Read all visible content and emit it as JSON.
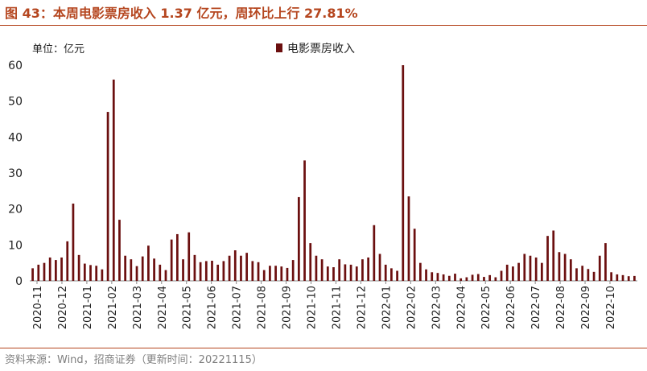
{
  "title": "图 43：本周电影票房收入 1.37 亿元，周环比上行 27.81%",
  "source": "资料来源：Wind，招商证券（更新时间：20221115）",
  "colors": {
    "accent": "#b5461f",
    "bar": "#6b0f0f"
  },
  "chart_data": {
    "type": "bar",
    "unit_label": "单位：亿元",
    "legend": "电影票房收入",
    "legend_position": "top-center",
    "grid": false,
    "ylim": [
      0,
      60
    ],
    "yticks": [
      0,
      10,
      20,
      30,
      40,
      50,
      60
    ],
    "xtick_labels": [
      "2020-11",
      "2020-12",
      "2021-01",
      "2021-02",
      "2021-03",
      "2021-04",
      "2021-05",
      "2021-06",
      "2021-07",
      "2021-08",
      "2021-09",
      "2021-10",
      "2021-11",
      "2021-12",
      "2022-01",
      "2022-02",
      "2022-03",
      "2022-04",
      "2022-05",
      "2022-06",
      "2022-07",
      "2022-08",
      "2022-09",
      "2022-10"
    ],
    "series": [
      {
        "name": "电影票房收入",
        "values": [
          3.5,
          4.5,
          5,
          6.5,
          5.8,
          6.5,
          11,
          21.5,
          7.2,
          4.8,
          4.4,
          4.2,
          3.2,
          47,
          56,
          17,
          7,
          6,
          4.1,
          6.8,
          9.8,
          6.2,
          4.5,
          3,
          11.5,
          13,
          6,
          13.5,
          7.2,
          5.2,
          5.5,
          5.6,
          4.5,
          5.5,
          7,
          8.5,
          7,
          7.8,
          5.5,
          5.2,
          3,
          4.2,
          4.2,
          4,
          3.6,
          5.8,
          23.3,
          33.5,
          10.5,
          7,
          6,
          4,
          3.8,
          6,
          4.6,
          4.5,
          4,
          6,
          6.5,
          15.5,
          7.5,
          4.5,
          3.5,
          2.8,
          60,
          23.5,
          14.5,
          5,
          3.2,
          2.4,
          2.2,
          1.8,
          1.4,
          2,
          0.7,
          1,
          1.7,
          1.9,
          1.1,
          1.6,
          1,
          2.8,
          4.5,
          4,
          5,
          7.5,
          7,
          6.5,
          5,
          12.5,
          14,
          8,
          7.5,
          6,
          3.5,
          4.2,
          3.3,
          2.5,
          7,
          10.5,
          2.4,
          1.8,
          1.6,
          1.3,
          1.37
        ]
      }
    ]
  }
}
